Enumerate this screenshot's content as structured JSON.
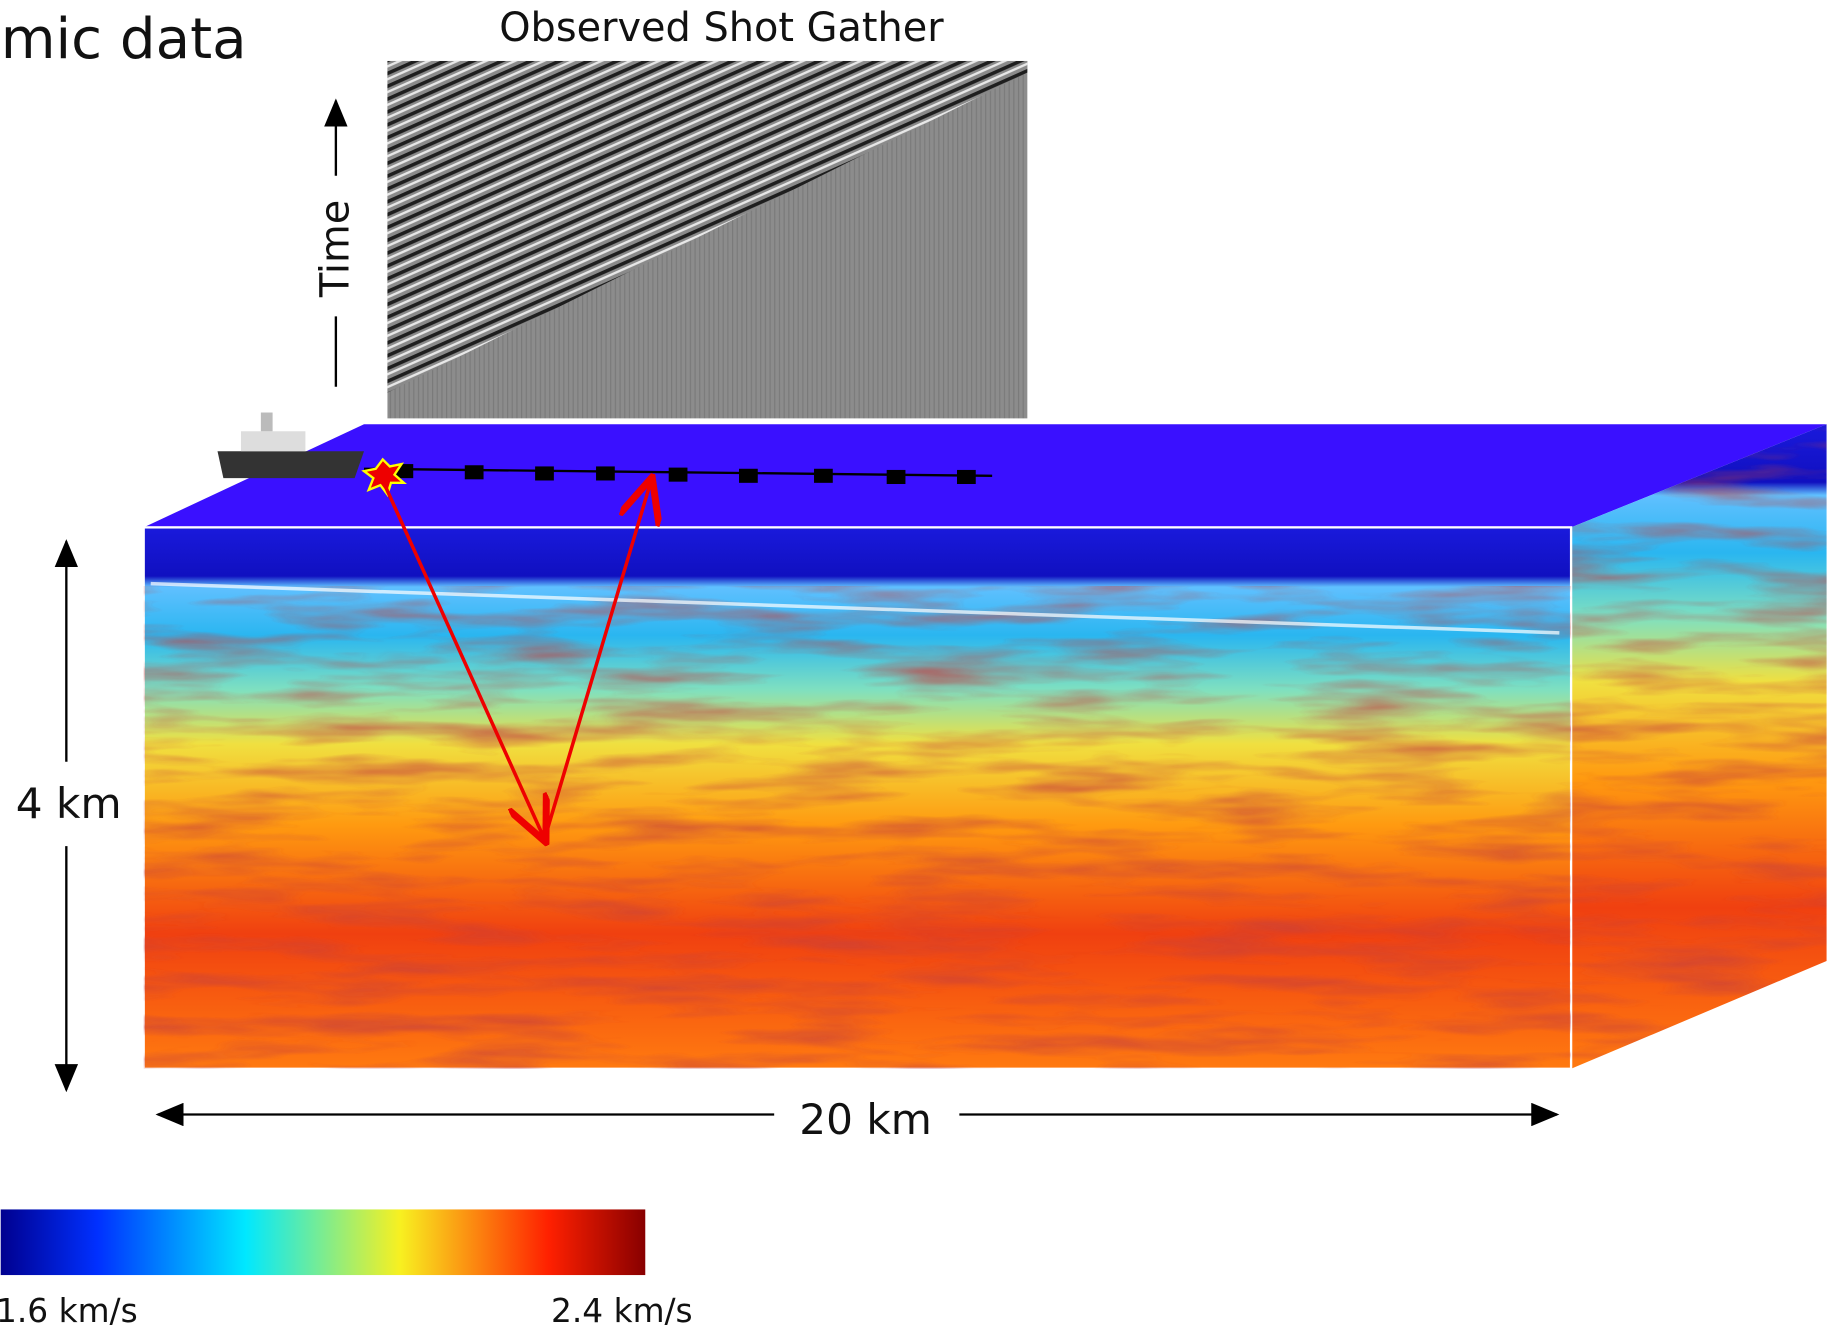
{
  "title": "mic data",
  "gather": {
    "title": "Observed Shot Gather",
    "axis_label": "Time"
  },
  "model": {
    "depth_label": "4 km",
    "width_label": "20 km"
  },
  "colorbar": {
    "min_label": "1.6 km/s",
    "max_label": "2.4 km/s"
  }
}
